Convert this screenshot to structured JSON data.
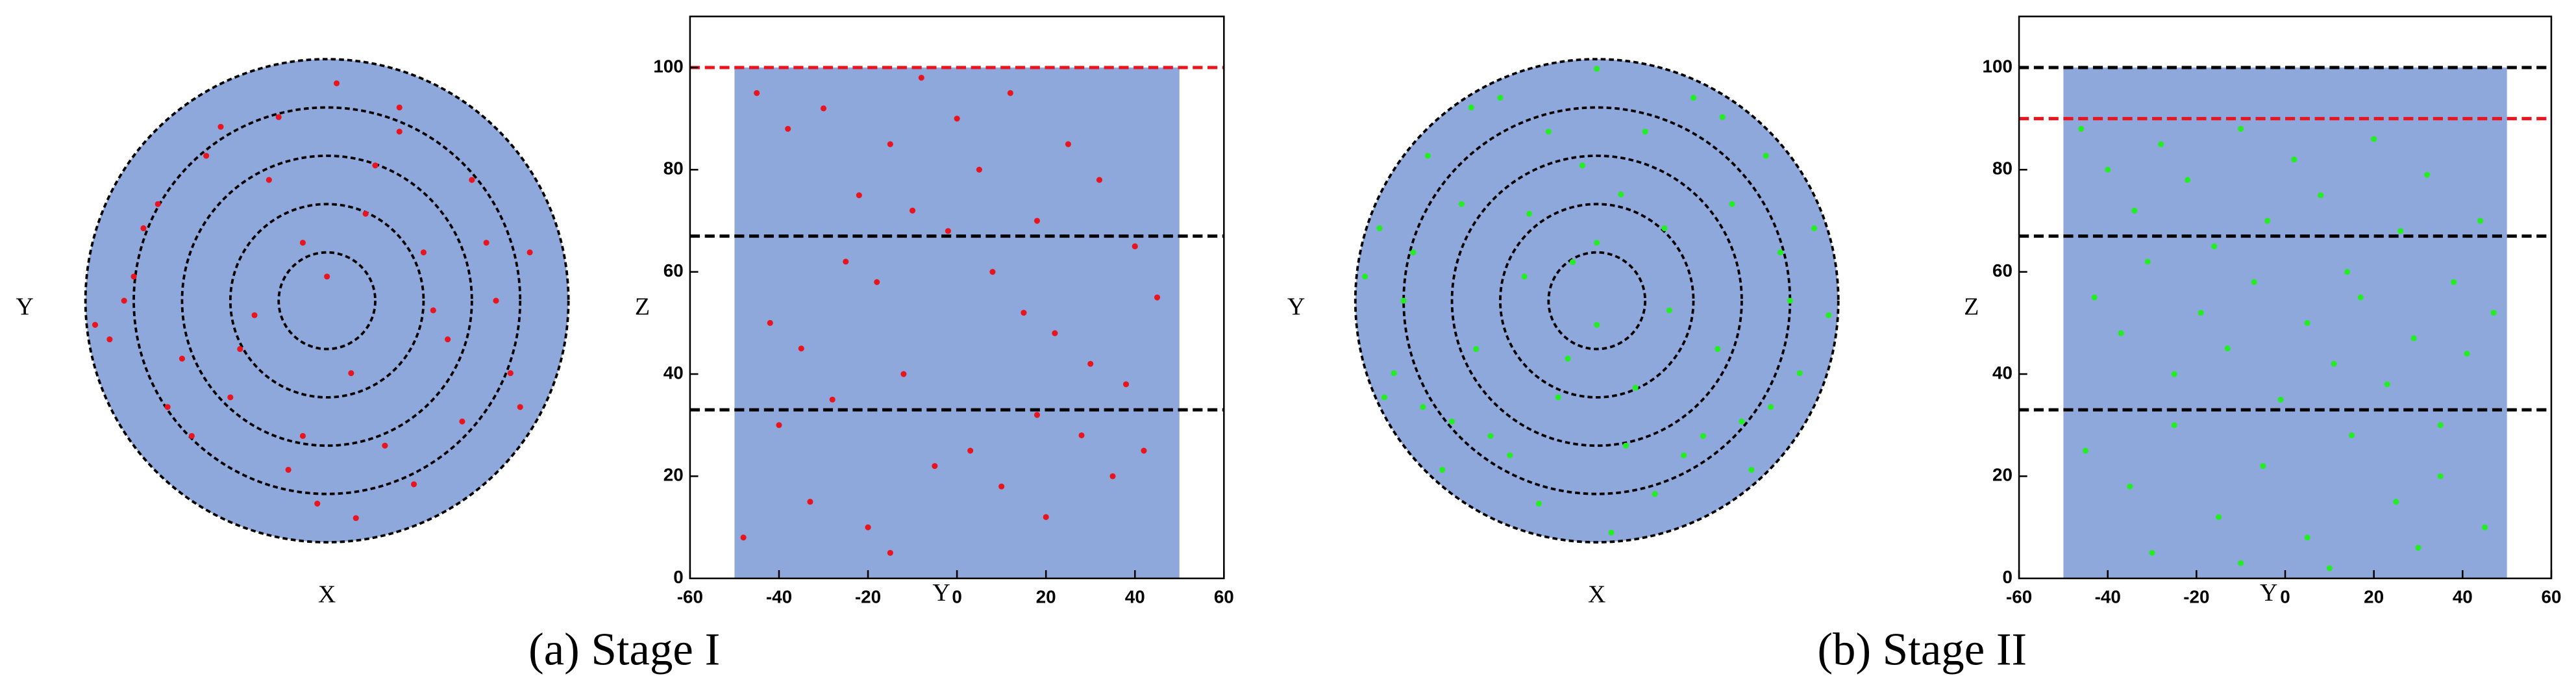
{
  "chart_data": [
    {
      "type": "disk-scatter",
      "xlabel": "X",
      "ylabel": "Y",
      "color": "#e8141e",
      "fill": "#8fa8dc",
      "xlim": [
        -50,
        50
      ],
      "ylim": [
        -50,
        50
      ],
      "rings": [
        10,
        20,
        30,
        40,
        50
      ],
      "x": [
        2,
        -10,
        15,
        -25,
        30,
        -35,
        8,
        -5,
        20,
        -40,
        35,
        -15,
        25,
        -30,
        5,
        -20,
        40,
        -45,
        12,
        -8,
        18,
        -28,
        28,
        -2,
        -38,
        42,
        0,
        -12,
        22,
        -33,
        10,
        -18,
        33,
        -42,
        -5,
        15,
        38,
        -22,
        6,
        -48
      ],
      "y": [
        45,
        38,
        35,
        30,
        25,
        20,
        18,
        12,
        10,
        5,
        0,
        -3,
        -8,
        -12,
        -15,
        -20,
        -22,
        -8,
        -30,
        -35,
        -38,
        -28,
        -25,
        -42,
        15,
        10,
        5,
        25,
        -2,
        -22,
        28,
        -10,
        12,
        0,
        -28,
        40,
        -15,
        36,
        -45,
        -5
      ]
    },
    {
      "type": "scatter",
      "xlabel": "Y",
      "ylabel": "Z",
      "color": "#e8141e",
      "band": {
        "x": [
          -50,
          50
        ],
        "y": [
          0,
          100
        ],
        "color": "#8fa8dc"
      },
      "xlim": [
        -60,
        60
      ],
      "xticks": [
        -60,
        -40,
        -20,
        0,
        20,
        40,
        60
      ],
      "ylim": [
        0,
        110
      ],
      "yticks": [
        0,
        20,
        40,
        60,
        80,
        100
      ],
      "hlines": [
        {
          "value": 100,
          "color": "#e8141e"
        },
        {
          "value": 67,
          "color": "#000000"
        },
        {
          "value": 33,
          "color": "#000000"
        }
      ],
      "x": [
        -45,
        -38,
        -30,
        -22,
        -15,
        -8,
        0,
        5,
        12,
        18,
        25,
        32,
        40,
        45,
        -42,
        -35,
        -25,
        -18,
        -10,
        -2,
        8,
        15,
        22,
        30,
        38,
        -40,
        -28,
        -12,
        3,
        18,
        35,
        -33,
        -20,
        -5,
        10,
        28,
        42,
        -48,
        -15,
        20
      ],
      "y": [
        95,
        88,
        92,
        75,
        85,
        98,
        90,
        80,
        95,
        70,
        85,
        78,
        65,
        55,
        50,
        45,
        62,
        58,
        72,
        68,
        60,
        52,
        48,
        42,
        38,
        30,
        35,
        40,
        25,
        32,
        20,
        15,
        10,
        22,
        18,
        28,
        25,
        8,
        5,
        12
      ]
    },
    {
      "type": "disk-scatter",
      "xlabel": "X",
      "ylabel": "Y",
      "color": "#22ee22",
      "fill": "#8fa8dc",
      "xlim": [
        -50,
        50
      ],
      "ylim": [
        -50,
        50
      ],
      "rings": [
        10,
        20,
        30,
        40,
        50
      ],
      "x": [
        0,
        -20,
        20,
        -35,
        35,
        -10,
        10,
        -45,
        45,
        -28,
        28,
        5,
        -5,
        -15,
        15,
        -40,
        40,
        -25,
        25,
        0,
        -30,
        30,
        -8,
        8,
        -42,
        42,
        -18,
        18,
        -32,
        32,
        12,
        -12,
        -22,
        22,
        -38,
        38,
        3,
        -3,
        -48,
        48,
        -14,
        14,
        -26,
        26,
        6,
        -6,
        -36,
        36,
        0,
        -44
      ],
      "y": [
        48,
        42,
        42,
        30,
        30,
        35,
        35,
        15,
        15,
        20,
        20,
        22,
        8,
        5,
        -2,
        0,
        0,
        -10,
        -10,
        -5,
        -25,
        -25,
        -20,
        -18,
        -15,
        -15,
        -32,
        -32,
        -35,
        -35,
        -40,
        -42,
        -28,
        -28,
        10,
        10,
        -48,
        28,
        5,
        -3,
        18,
        15,
        40,
        38,
        -30,
        -12,
        -22,
        -22,
        12,
        -20
      ]
    },
    {
      "type": "scatter",
      "xlabel": "Y",
      "ylabel": "Z",
      "color": "#22ee22",
      "band": {
        "x": [
          -50,
          50
        ],
        "y": [
          0,
          100
        ],
        "color": "#8fa8dc"
      },
      "xlim": [
        -60,
        60
      ],
      "xticks": [
        -60,
        -40,
        -20,
        0,
        20,
        40,
        60
      ],
      "ylim": [
        0,
        110
      ],
      "yticks": [
        0,
        20,
        40,
        60,
        80,
        100
      ],
      "hlines": [
        {
          "value": 100,
          "color": "#000000"
        },
        {
          "value": 90,
          "color": "#e8141e"
        },
        {
          "value": 67,
          "color": "#000000"
        },
        {
          "value": 33,
          "color": "#000000"
        }
      ],
      "x": [
        -46,
        -40,
        -34,
        -28,
        -22,
        -16,
        -10,
        -4,
        2,
        8,
        14,
        20,
        26,
        32,
        38,
        44,
        -43,
        -37,
        -31,
        -25,
        -19,
        -13,
        -7,
        -1,
        5,
        11,
        17,
        23,
        29,
        35,
        41,
        47,
        -45,
        -35,
        -25,
        -15,
        -5,
        5,
        15,
        25,
        35,
        45,
        -30,
        -10,
        10,
        30
      ],
      "y": [
        88,
        80,
        72,
        85,
        78,
        65,
        88,
        70,
        82,
        75,
        60,
        86,
        68,
        79,
        58,
        70,
        55,
        48,
        62,
        40,
        52,
        45,
        58,
        35,
        50,
        42,
        55,
        38,
        47,
        30,
        44,
        52,
        25,
        18,
        30,
        12,
        22,
        8,
        28,
        15,
        20,
        10,
        5,
        3,
        2,
        6
      ]
    }
  ],
  "captions": [
    "(a) Stage I",
    "(b) Stage II"
  ]
}
